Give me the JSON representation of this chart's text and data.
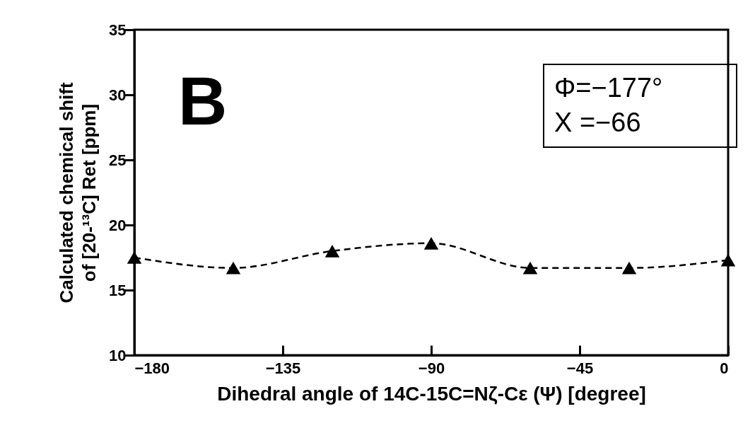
{
  "chart_data": {
    "type": "line",
    "xlabel": "Dihedral angle of 14C-15C=Nζ-Cε (Ψ) [degree]",
    "ylabel": [
      "Calculated  chemical shift",
      "of [20-¹³C] Ret [ppm]"
    ],
    "x": [
      -180,
      -150,
      -120,
      -90,
      -60,
      -30,
      0
    ],
    "series": [
      {
        "color": "#000000",
        "values": [
          17.5,
          16.7,
          18.0,
          18.6,
          16.7,
          16.7,
          17.3
        ]
      }
    ],
    "xlim": [
      -180,
      0
    ],
    "xticks": [
      -180,
      -135,
      -90,
      -45,
      0
    ],
    "ylim": [
      10,
      35
    ],
    "yticks": [
      10,
      15,
      20,
      25,
      30,
      35
    ],
    "marker": "triangle",
    "line_style": "dashed",
    "grid": false,
    "annotations": [
      "B",
      "Φ=−177°",
      "X =−66"
    ]
  }
}
